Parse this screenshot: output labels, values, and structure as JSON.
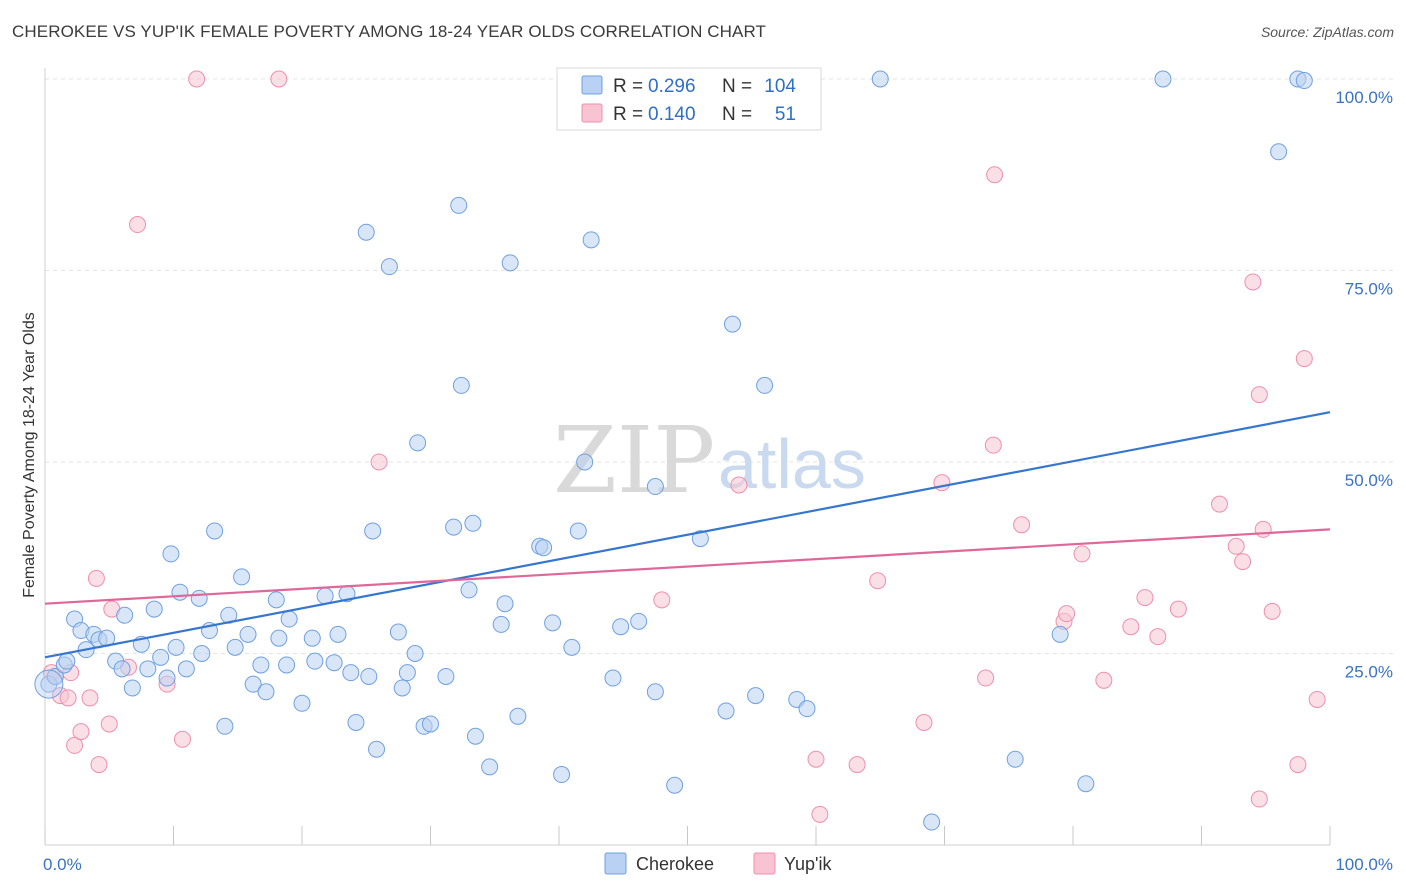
{
  "title": "CHEROKEE VS YUP'IK FEMALE POVERTY AMONG 18-24 YEAR OLDS CORRELATION CHART",
  "source": "Source: ZipAtlas.com",
  "watermark": {
    "part1": "ZIP",
    "part2": "atlas"
  },
  "legend": {
    "r_label": "R =",
    "n_label": "N =",
    "rows": [
      {
        "r": "0.296",
        "n": "104",
        "color": "#6fa0e0",
        "fill": "#b9d1f3"
      },
      {
        "r": "0.140",
        "n": "51",
        "color": "#ee8fae",
        "fill": "#f8c4d4"
      }
    ]
  },
  "bottom_legend": [
    "Cherokee",
    "Yup'ik"
  ],
  "colors": {
    "cherokee": "#3676d1",
    "yupik": "#e0679a"
  },
  "chart_data": {
    "type": "scatter",
    "title": "CHEROKEE VS YUP'IK FEMALE POVERTY AMONG 18-24 YEAR OLDS CORRELATION CHART",
    "xlabel": "",
    "ylabel": "Female Poverty Among 18-24 Year Olds",
    "xlim": [
      0,
      100
    ],
    "ylim": [
      0,
      100
    ],
    "x_tick_labels": [
      "0.0%",
      "100.0%"
    ],
    "y_tick_labels": [
      "25.0%",
      "50.0%",
      "75.0%",
      "100.0%"
    ],
    "y_ticks": [
      25,
      50,
      75,
      100
    ],
    "grid": true,
    "legend_position": "top-center",
    "series": [
      {
        "name": "Cherokee",
        "color": "#3676d1",
        "trend": {
          "x": [
            0,
            100
          ],
          "y": [
            24.5,
            56.5
          ]
        },
        "points": [
          [
            0.3,
            21
          ],
          [
            0.8,
            22
          ],
          [
            1.5,
            23.5
          ],
          [
            1.7,
            24
          ],
          [
            2.3,
            29.5
          ],
          [
            2.8,
            28
          ],
          [
            3.2,
            25.5
          ],
          [
            3.8,
            27.5
          ],
          [
            4.2,
            26.8
          ],
          [
            4.8,
            27
          ],
          [
            5.5,
            24
          ],
          [
            6,
            23
          ],
          [
            6.2,
            30
          ],
          [
            6.8,
            20.5
          ],
          [
            7.5,
            26.2
          ],
          [
            8,
            23
          ],
          [
            8.5,
            30.8
          ],
          [
            9,
            24.5
          ],
          [
            9.5,
            21.8
          ],
          [
            9.8,
            38
          ],
          [
            10.2,
            25.8
          ],
          [
            10.5,
            33
          ],
          [
            11,
            23
          ],
          [
            12,
            32.2
          ],
          [
            12.2,
            25
          ],
          [
            12.8,
            28
          ],
          [
            13.2,
            41
          ],
          [
            14,
            15.5
          ],
          [
            14.3,
            30
          ],
          [
            14.8,
            25.8
          ],
          [
            15.3,
            35
          ],
          [
            15.8,
            27.5
          ],
          [
            16.2,
            21
          ],
          [
            16.8,
            23.5
          ],
          [
            17.2,
            20
          ],
          [
            18,
            32
          ],
          [
            18.2,
            27
          ],
          [
            18.8,
            23.5
          ],
          [
            19,
            29.5
          ],
          [
            20,
            18.5
          ],
          [
            20.8,
            27
          ],
          [
            21,
            24
          ],
          [
            21.8,
            32.5
          ],
          [
            22.5,
            23.8
          ],
          [
            22.8,
            27.5
          ],
          [
            23.5,
            32.8
          ],
          [
            23.8,
            22.5
          ],
          [
            24.2,
            16
          ],
          [
            25.2,
            22
          ],
          [
            25,
            80
          ],
          [
            25.8,
            12.5
          ],
          [
            25.5,
            41
          ],
          [
            26.8,
            75.5
          ],
          [
            27.5,
            27.8
          ],
          [
            27.8,
            20.5
          ],
          [
            28.2,
            22.5
          ],
          [
            28.8,
            25
          ],
          [
            29,
            52.5
          ],
          [
            29.5,
            15.5
          ],
          [
            30,
            15.8
          ],
          [
            31.2,
            22
          ],
          [
            31.8,
            41.5
          ],
          [
            32.2,
            83.5
          ],
          [
            32.4,
            60
          ],
          [
            33,
            33.3
          ],
          [
            33.3,
            42
          ],
          [
            33.5,
            14.2
          ],
          [
            34.6,
            10.2
          ],
          [
            35.5,
            28.8
          ],
          [
            35.8,
            31.5
          ],
          [
            36.2,
            76
          ],
          [
            36.8,
            16.8
          ],
          [
            38.5,
            39
          ],
          [
            38.8,
            38.8
          ],
          [
            39.5,
            29
          ],
          [
            40.2,
            9.2
          ],
          [
            41,
            25.8
          ],
          [
            41.5,
            41
          ],
          [
            42,
            50
          ],
          [
            42.5,
            79
          ],
          [
            44.2,
            21.8
          ],
          [
            44.8,
            28.5
          ],
          [
            46.2,
            29.2
          ],
          [
            47.5,
            46.8
          ],
          [
            47.5,
            20
          ],
          [
            49,
            7.8
          ],
          [
            51,
            40
          ],
          [
            53,
            17.5
          ],
          [
            53.5,
            68
          ],
          [
            54,
            100
          ],
          [
            55.3,
            19.5
          ],
          [
            56,
            60
          ],
          [
            58,
            100
          ],
          [
            58.5,
            19
          ],
          [
            59.3,
            17.8
          ],
          [
            65,
            100
          ],
          [
            69,
            3
          ],
          [
            75.5,
            11.2
          ],
          [
            79,
            27.5
          ],
          [
            81,
            8
          ],
          [
            87,
            100
          ],
          [
            96,
            90.5
          ],
          [
            97.5,
            100
          ],
          [
            98,
            99.8
          ]
        ]
      },
      {
        "name": "Yup'ik",
        "color": "#e0679a",
        "trend": {
          "x": [
            0,
            100
          ],
          "y": [
            31.5,
            41.2
          ]
        },
        "points": [
          [
            0.5,
            22.5
          ],
          [
            0.8,
            22
          ],
          [
            1.2,
            19.5
          ],
          [
            1.8,
            19.2
          ],
          [
            2,
            22.5
          ],
          [
            2.3,
            13
          ],
          [
            2.8,
            14.8
          ],
          [
            3.5,
            19.2
          ],
          [
            4,
            34.8
          ],
          [
            4.2,
            10.5
          ],
          [
            5,
            15.8
          ],
          [
            5.2,
            30.8
          ],
          [
            6.5,
            23.2
          ],
          [
            7.2,
            81
          ],
          [
            9.5,
            21
          ],
          [
            10.7,
            13.8
          ],
          [
            11.8,
            100
          ],
          [
            18.2,
            100
          ],
          [
            26,
            50
          ],
          [
            43,
            100
          ],
          [
            48,
            32
          ],
          [
            54,
            47
          ],
          [
            60,
            11.2
          ],
          [
            60.3,
            4
          ],
          [
            63.2,
            10.5
          ],
          [
            64.8,
            34.5
          ],
          [
            68.4,
            16
          ],
          [
            69.8,
            47.3
          ],
          [
            73.2,
            21.8
          ],
          [
            73.8,
            52.2
          ],
          [
            73.9,
            87.5
          ],
          [
            76,
            41.8
          ],
          [
            79.3,
            29.2
          ],
          [
            79.5,
            30.2
          ],
          [
            80.7,
            38
          ],
          [
            82.4,
            21.5
          ],
          [
            84.5,
            28.5
          ],
          [
            85.6,
            32.3
          ],
          [
            86.6,
            27.2
          ],
          [
            88.2,
            30.8
          ],
          [
            91.4,
            44.5
          ],
          [
            92.7,
            39
          ],
          [
            93.2,
            37
          ],
          [
            94,
            73.5
          ],
          [
            94.5,
            6
          ],
          [
            94.5,
            58.8
          ],
          [
            94.8,
            41.2
          ],
          [
            95.5,
            30.5
          ],
          [
            97.5,
            10.5
          ],
          [
            98,
            63.5
          ],
          [
            99,
            19
          ]
        ]
      }
    ]
  }
}
